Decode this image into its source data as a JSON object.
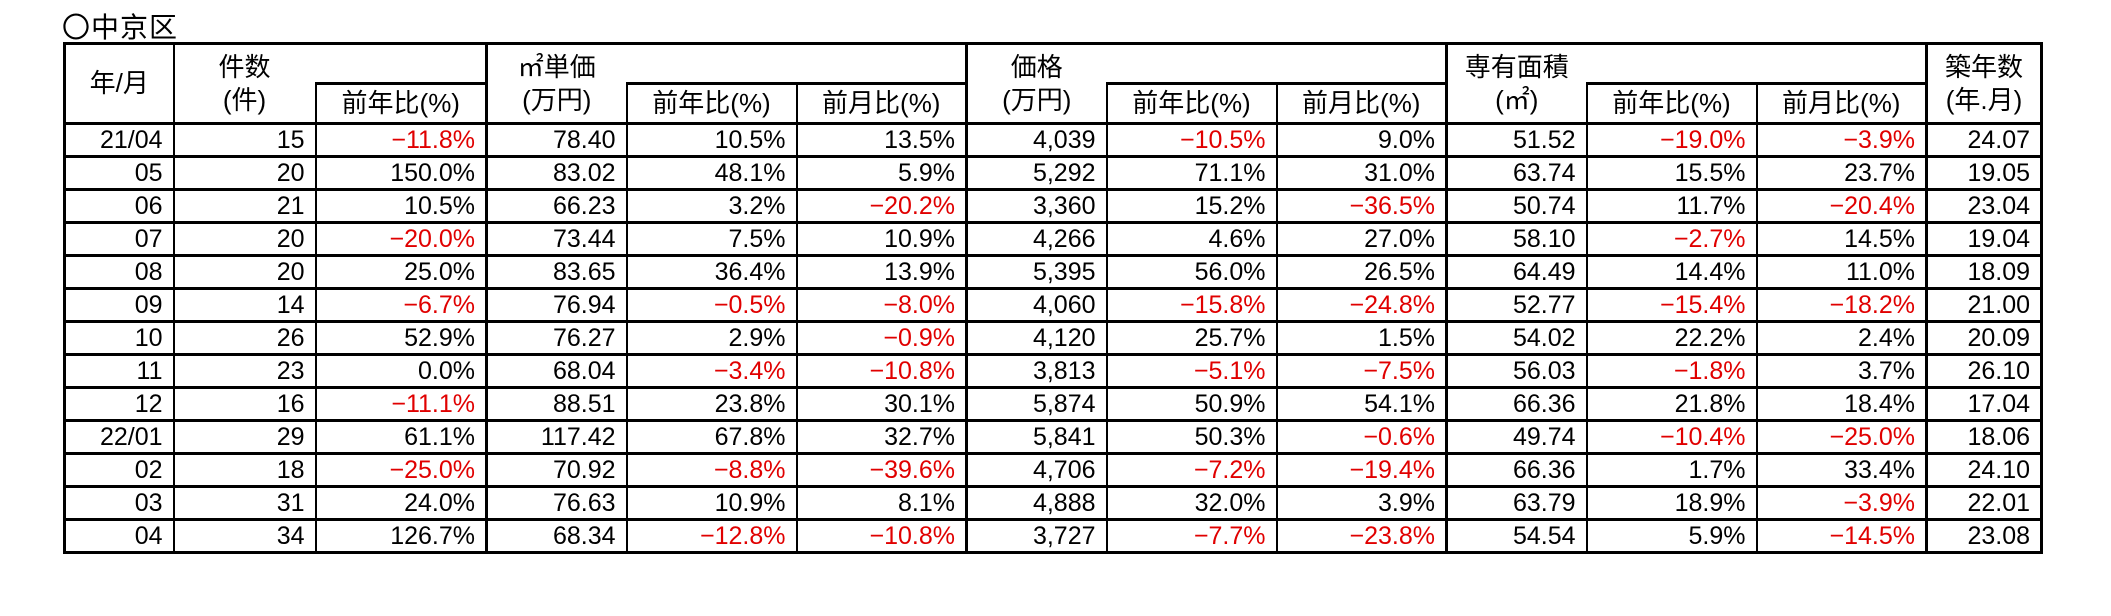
{
  "title": "〇中京区",
  "colors": {
    "negative_value": "#e00000",
    "text": "#000000",
    "border": "#000000",
    "background": "#ffffff"
  },
  "header": {
    "year_month": "年/月",
    "groups": [
      {
        "title": "件数",
        "unit": "(件)",
        "subs": [
          "前年比(%)"
        ]
      },
      {
        "title": "㎡単価",
        "unit": "(万円)",
        "subs": [
          "前年比(%)",
          "前月比(%)"
        ]
      },
      {
        "title": "価格",
        "unit": "(万円)",
        "subs": [
          "前年比(%)",
          "前月比(%)"
        ]
      },
      {
        "title": "専有面積",
        "unit": "(㎡)",
        "subs": [
          "前年比(%)",
          "前月比(%)"
        ]
      },
      {
        "title": "築年数",
        "unit": "(年.月)",
        "subs": []
      }
    ]
  },
  "column_keys": [
    "year_month",
    "count",
    "count_yoy",
    "sqm_price",
    "sqm_price_yoy",
    "sqm_price_mom",
    "price",
    "price_yoy",
    "price_mom",
    "area",
    "area_yoy",
    "area_mom",
    "building_age"
  ],
  "rows": [
    [
      "21/04",
      "15",
      "−11.8%",
      "78.40",
      "10.5%",
      "13.5%",
      "4,039",
      "−10.5%",
      "9.0%",
      "51.52",
      "−19.0%",
      "−3.9%",
      "24.07"
    ],
    [
      "05",
      "20",
      "150.0%",
      "83.02",
      "48.1%",
      "5.9%",
      "5,292",
      "71.1%",
      "31.0%",
      "63.74",
      "15.5%",
      "23.7%",
      "19.05"
    ],
    [
      "06",
      "21",
      "10.5%",
      "66.23",
      "3.2%",
      "−20.2%",
      "3,360",
      "15.2%",
      "−36.5%",
      "50.74",
      "11.7%",
      "−20.4%",
      "23.04"
    ],
    [
      "07",
      "20",
      "−20.0%",
      "73.44",
      "7.5%",
      "10.9%",
      "4,266",
      "4.6%",
      "27.0%",
      "58.10",
      "−2.7%",
      "14.5%",
      "19.04"
    ],
    [
      "08",
      "20",
      "25.0%",
      "83.65",
      "36.4%",
      "13.9%",
      "5,395",
      "56.0%",
      "26.5%",
      "64.49",
      "14.4%",
      "11.0%",
      "18.09"
    ],
    [
      "09",
      "14",
      "−6.7%",
      "76.94",
      "−0.5%",
      "−8.0%",
      "4,060",
      "−15.8%",
      "−24.8%",
      "52.77",
      "−15.4%",
      "−18.2%",
      "21.00"
    ],
    [
      "10",
      "26",
      "52.9%",
      "76.27",
      "2.9%",
      "−0.9%",
      "4,120",
      "25.7%",
      "1.5%",
      "54.02",
      "22.2%",
      "2.4%",
      "20.09"
    ],
    [
      "11",
      "23",
      "0.0%",
      "68.04",
      "−3.4%",
      "−10.8%",
      "3,813",
      "−5.1%",
      "−7.5%",
      "56.03",
      "−1.8%",
      "3.7%",
      "26.10"
    ],
    [
      "12",
      "16",
      "−11.1%",
      "88.51",
      "23.8%",
      "30.1%",
      "5,874",
      "50.9%",
      "54.1%",
      "66.36",
      "21.8%",
      "18.4%",
      "17.04"
    ],
    [
      "22/01",
      "29",
      "61.1%",
      "117.42",
      "67.8%",
      "32.7%",
      "5,841",
      "50.3%",
      "−0.6%",
      "49.74",
      "−10.4%",
      "−25.0%",
      "18.06"
    ],
    [
      "02",
      "18",
      "−25.0%",
      "70.92",
      "−8.8%",
      "−39.6%",
      "4,706",
      "−7.2%",
      "−19.4%",
      "66.36",
      "1.7%",
      "33.4%",
      "24.10"
    ],
    [
      "03",
      "31",
      "24.0%",
      "76.63",
      "10.9%",
      "8.1%",
      "4,888",
      "32.0%",
      "3.9%",
      "63.79",
      "18.9%",
      "−3.9%",
      "22.01"
    ],
    [
      "04",
      "34",
      "126.7%",
      "68.34",
      "−12.8%",
      "−10.8%",
      "3,727",
      "−7.7%",
      "−23.8%",
      "54.54",
      "5.9%",
      "−14.5%",
      "23.08"
    ]
  ]
}
